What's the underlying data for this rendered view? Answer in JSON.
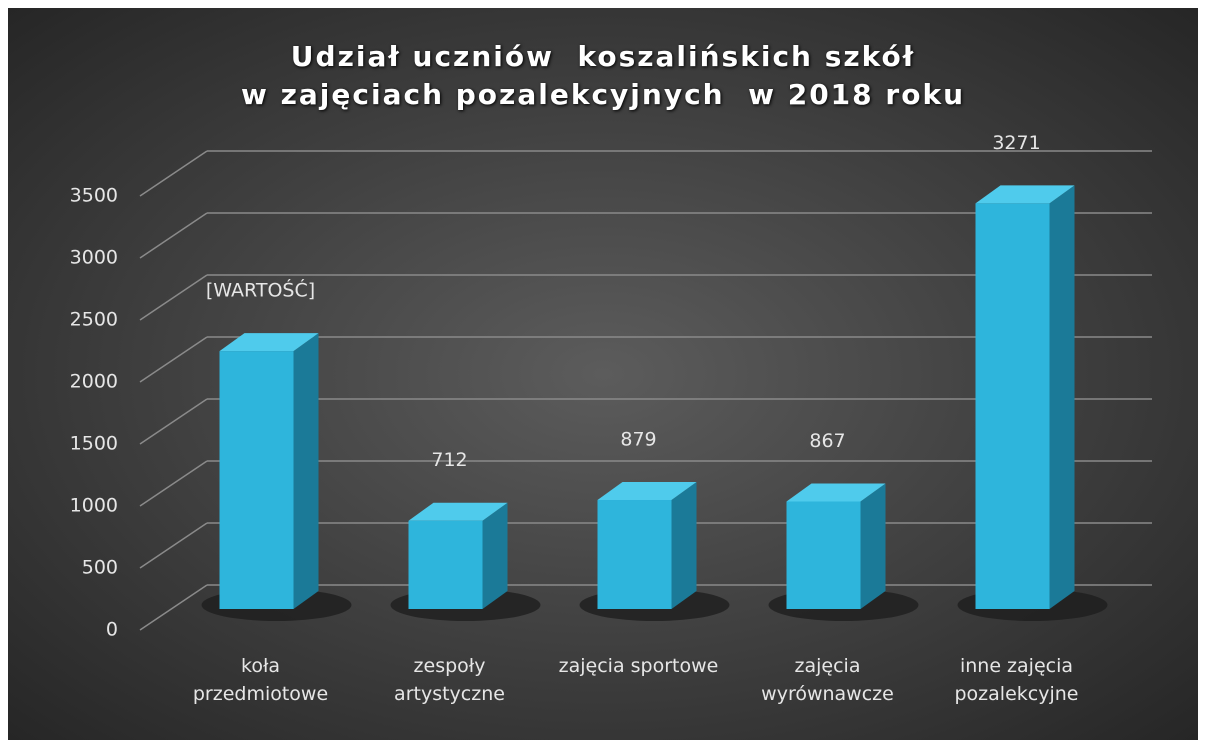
{
  "chart_data": {
    "type": "bar3d",
    "title": "Udział uczniów  koszalińskich szkół\nw zajęciach pozalekcyjnych  w 2018 roku",
    "categories": [
      "koła przedmiotowe",
      "zespoły artystyczne",
      "zajęcia sportowe",
      "zajęcia wyrównawcze",
      "inne zajęcia pozalekcyjne"
    ],
    "values": [
      2080,
      712,
      879,
      867,
      3271
    ],
    "value_labels": [
      "[WARTOŚĆ]",
      "712",
      "879",
      "867",
      "3271"
    ],
    "color": "#2eb5dc",
    "ylim": [
      0,
      3500
    ],
    "yticks": [
      0,
      500,
      1000,
      1500,
      2000,
      2500,
      3000,
      3500
    ],
    "grid": true
  }
}
